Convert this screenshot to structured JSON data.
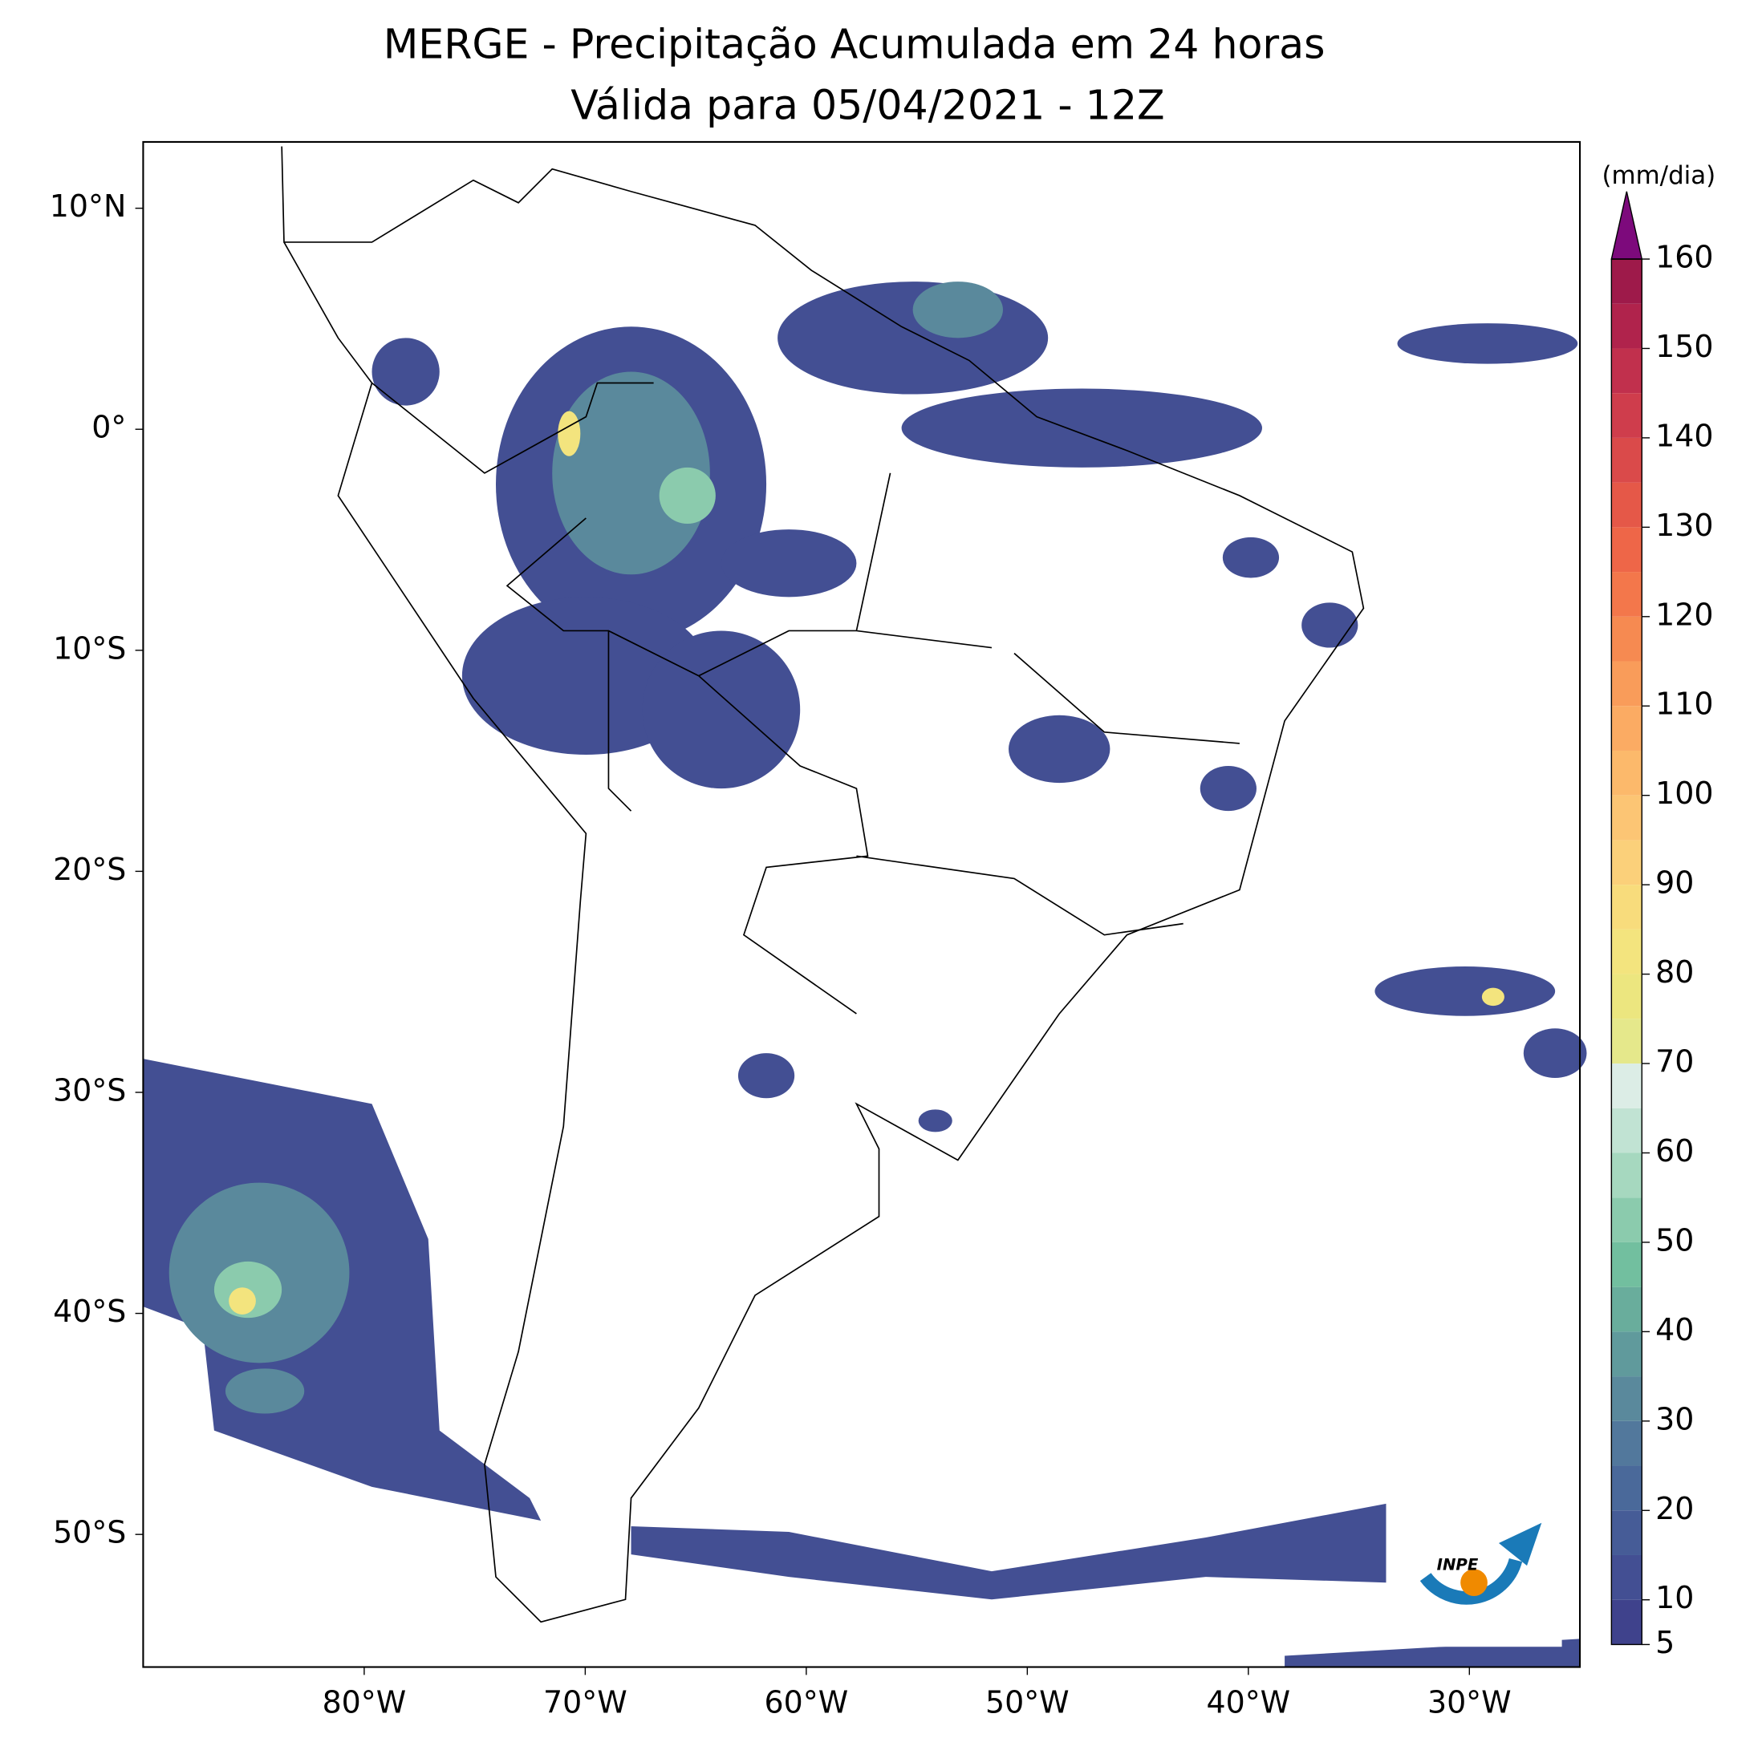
{
  "header": {
    "title": "MERGE - Precipitação Acumulada em 24 horas",
    "subtitle": "Válida para 05/04/2021 - 12Z"
  },
  "map": {
    "xlim": [
      -90,
      -25
    ],
    "ylim": [
      -56,
      13
    ],
    "xticks": [
      {
        "value": -80,
        "label": "80°W"
      },
      {
        "value": -70,
        "label": "70°W"
      },
      {
        "value": -60,
        "label": "60°W"
      },
      {
        "value": -50,
        "label": "50°W"
      },
      {
        "value": -40,
        "label": "40°W"
      },
      {
        "value": -30,
        "label": "30°W"
      }
    ],
    "yticks": [
      {
        "value": 10,
        "label": "10°N"
      },
      {
        "value": 0,
        "label": "0°"
      },
      {
        "value": -10,
        "label": "10°S"
      },
      {
        "value": -20,
        "label": "20°S"
      },
      {
        "value": -30,
        "label": "30°S"
      },
      {
        "value": -40,
        "label": "40°S"
      },
      {
        "value": -50,
        "label": "50°S"
      }
    ]
  },
  "colorbar": {
    "label": "(mm/dia)",
    "lim": [
      5,
      160
    ],
    "ticks": [
      5,
      10,
      20,
      30,
      40,
      50,
      60,
      70,
      80,
      90,
      100,
      110,
      120,
      130,
      140,
      150,
      160
    ],
    "levels": [
      5,
      10,
      15,
      20,
      25,
      30,
      35,
      40,
      45,
      50,
      55,
      60,
      65,
      70,
      75,
      80,
      85,
      90,
      95,
      100,
      105,
      110,
      115,
      120,
      125,
      130,
      135,
      140,
      145,
      150,
      155,
      160
    ],
    "colors": [
      "#3f428c",
      "#434f93",
      "#465c97",
      "#4a699a",
      "#52789c",
      "#5a899c",
      "#609a9c",
      "#69ad9c",
      "#72bf9f",
      "#8bcbad",
      "#a6d8bf",
      "#c1e3d3",
      "#dcede6",
      "#e5e88b",
      "#ece67f",
      "#f3e47e",
      "#f8dc7c",
      "#fbd07a",
      "#fcc574",
      "#fcb96b",
      "#fbab63",
      "#f99c5a",
      "#f68a51",
      "#f3774b",
      "#ee6648",
      "#e55848",
      "#da4a4a",
      "#cf3d4c",
      "#c1304d",
      "#b0234c",
      "#9e1a4a"
    ],
    "extend_color": "#7d0a7c"
  },
  "logo": {
    "text": "INPE"
  }
}
